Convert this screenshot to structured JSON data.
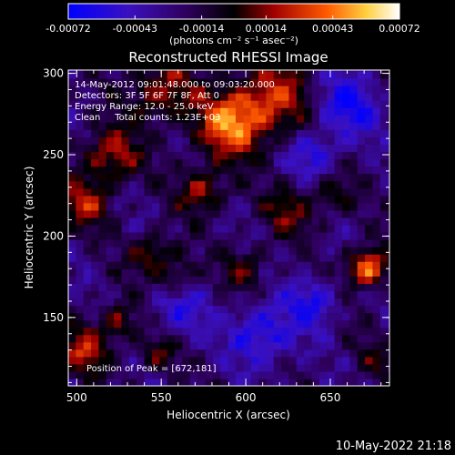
{
  "chart_data": {
    "type": "heatmap",
    "title": "Reconstructed RHESSI Image",
    "xlabel": "Heliocentric X (arcsec)",
    "ylabel": "Heliocentric Y (arcsec)",
    "xlim": [
      495,
      685
    ],
    "ylim": [
      108,
      302
    ],
    "x_ticks": [
      500,
      550,
      600,
      650
    ],
    "y_ticks": [
      150,
      200,
      250,
      300
    ],
    "x_tick_labels": [
      "500",
      "550",
      "600",
      "650"
    ],
    "y_tick_labels": [
      "150",
      "200",
      "250",
      "300"
    ],
    "colorbar": {
      "min": -0.00072,
      "max": 0.00072,
      "ticks": [
        -0.00072,
        -0.00043,
        -0.00014,
        0.00014,
        0.00043,
        0.00072
      ],
      "tick_labels": [
        "-0.00072",
        "-0.00043",
        "-0.00014",
        "0.00014",
        "0.00043",
        "0.00072"
      ],
      "units": "(photons cm⁻² s⁻¹ asec⁻²)",
      "colors": [
        "#0000ff",
        "#4b0096",
        "#000000",
        "#b40000",
        "#ff6400",
        "#ffff80",
        "#ffffff"
      ]
    },
    "info_lines": [
      "14-May-2012 09:01:48.000 to 09:03:20.000",
      "Detectors: 3F 5F 6F 7F 8F, Att 0",
      "Energy Range: 12.0 - 25.0 keV",
      "Clean     Total counts: 1.23E+03"
    ],
    "peak_label": "Position of Peak = [672,181]",
    "peak": [
      672,
      181
    ],
    "sources": [
      {
        "x": 672,
        "y": 181,
        "sigma": 8,
        "amp": 0.00072
      },
      {
        "x": 590,
        "y": 268,
        "sigma": 14,
        "amp": 0.0006
      },
      {
        "x": 615,
        "y": 285,
        "sigma": 16,
        "amp": 0.0005
      },
      {
        "x": 550,
        "y": 290,
        "sigma": 14,
        "amp": 0.0004
      },
      {
        "x": 520,
        "y": 250,
        "sigma": 12,
        "amp": 0.00045
      },
      {
        "x": 575,
        "y": 228,
        "sigma": 10,
        "amp": 0.0004
      },
      {
        "x": 505,
        "y": 220,
        "sigma": 10,
        "amp": 0.0004
      },
      {
        "x": 545,
        "y": 190,
        "sigma": 9,
        "amp": 0.00035
      },
      {
        "x": 560,
        "y": 175,
        "sigma": 8,
        "amp": 0.0003
      },
      {
        "x": 600,
        "y": 180,
        "sigma": 9,
        "amp": 0.0003
      },
      {
        "x": 625,
        "y": 215,
        "sigma": 10,
        "amp": 0.0003
      },
      {
        "x": 650,
        "y": 225,
        "sigma": 9,
        "amp": 0.00025
      },
      {
        "x": 505,
        "y": 130,
        "sigma": 10,
        "amp": 0.00045
      },
      {
        "x": 525,
        "y": 148,
        "sigma": 8,
        "amp": 0.00035
      },
      {
        "x": 548,
        "y": 128,
        "sigma": 8,
        "amp": 0.0003
      },
      {
        "x": 678,
        "y": 125,
        "sigma": 8,
        "amp": 0.0002
      },
      {
        "x": 640,
        "y": 160,
        "sigma": 10,
        "amp": -0.00035
      },
      {
        "x": 610,
        "y": 140,
        "sigma": 14,
        "amp": -0.0004
      },
      {
        "x": 660,
        "y": 280,
        "sigma": 14,
        "amp": -0.0004
      },
      {
        "x": 560,
        "y": 155,
        "sigma": 12,
        "amp": -0.0003
      },
      {
        "x": 640,
        "y": 250,
        "sigma": 10,
        "amp": -0.0003
      }
    ]
  },
  "footer": {
    "timestamp": "10-May-2022 21:18"
  }
}
